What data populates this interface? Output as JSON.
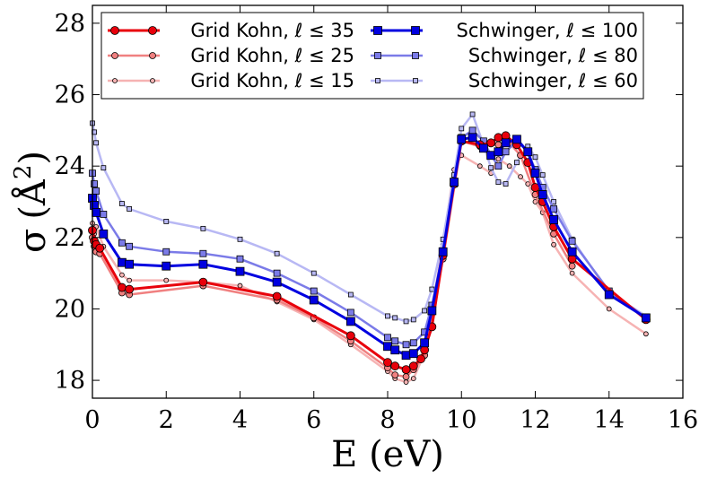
{
  "chart_data": {
    "type": "line",
    "title": "",
    "xlabel": "E (eV)",
    "ylabel": "σ (Å²)",
    "ylabel_parts": {
      "symbol": "σ",
      "unit": "Å",
      "exponent": "2"
    },
    "xlim": [
      0,
      16
    ],
    "ylim": [
      17.5,
      28.5
    ],
    "xticks": [
      0,
      2,
      4,
      6,
      8,
      10,
      12,
      14,
      16
    ],
    "xtick_labels": [
      "0",
      "2",
      "4",
      "6",
      "8",
      "10",
      "12",
      "14",
      "16"
    ],
    "yticks": [
      18,
      20,
      22,
      24,
      26,
      28
    ],
    "ytick_labels": [
      "18",
      "20",
      "22",
      "24",
      "26",
      "28"
    ],
    "grid": false,
    "legend_location": "top",
    "series": [
      {
        "name": "Grid Kohn, ℓ ≤ 35",
        "color": "#e8000b",
        "marker": "circle",
        "weight": "heavy",
        "x": [
          0,
          0.05,
          0.1,
          0.2,
          0.8,
          1,
          3,
          5,
          7,
          8,
          8.2,
          8.5,
          8.7,
          8.9,
          9,
          9.2,
          9.5,
          9.8,
          10,
          10.5,
          10.8,
          11,
          11.2,
          11.5,
          11.8,
          12,
          12.2,
          12.5,
          13,
          15
        ],
        "values": [
          22.2,
          21.9,
          21.8,
          21.7,
          20.6,
          20.55,
          20.75,
          20.35,
          19.25,
          18.5,
          18.4,
          18.3,
          18.4,
          18.6,
          18.85,
          19.5,
          21.5,
          23.5,
          24.7,
          24.6,
          24.65,
          24.8,
          24.85,
          24.6,
          24.1,
          23.4,
          23.0,
          22.3,
          21.4,
          19.7
        ]
      },
      {
        "name": "Grid Kohn, ℓ ≤ 25",
        "color": "#f08080",
        "marker": "circle",
        "weight": "medium",
        "x": [
          0,
          0.05,
          0.1,
          0.2,
          0.8,
          1,
          3,
          5,
          6,
          7,
          8,
          8.2,
          8.5,
          8.7,
          9,
          9.5,
          10,
          10.5,
          11,
          11.3,
          11.6,
          12,
          12.5,
          13
        ],
        "values": [
          22.0,
          21.75,
          21.6,
          21.55,
          20.45,
          20.4,
          20.65,
          20.25,
          19.75,
          19.1,
          18.35,
          18.15,
          18.1,
          18.3,
          18.7,
          21.4,
          24.7,
          24.55,
          24.6,
          24.65,
          24.3,
          23.2,
          22.1,
          21.2
        ]
      },
      {
        "name": "Grid Kohn, ℓ ≤ 15",
        "color": "#f6b3b3",
        "marker": "circle",
        "weight": "light",
        "x": [
          0,
          0.05,
          0.1,
          0.3,
          0.8,
          1,
          2,
          3,
          4,
          5,
          6,
          7,
          8,
          8.2,
          8.5,
          8.7,
          9,
          9.5,
          9.8,
          10,
          10.5,
          10.8,
          11,
          11.3,
          11.6,
          11.8,
          12,
          12.2,
          12.5,
          13,
          14,
          15
        ],
        "values": [
          22.4,
          22.1,
          22.3,
          21.75,
          20.95,
          20.8,
          20.8,
          20.75,
          20.65,
          20.2,
          19.7,
          19.0,
          18.25,
          18.05,
          17.95,
          18.05,
          18.75,
          21.8,
          23.9,
          24.3,
          24.0,
          23.8,
          24.2,
          24.0,
          23.7,
          23.5,
          23.0,
          22.7,
          21.8,
          21.0,
          20.0,
          19.3
        ]
      },
      {
        "name": "Schwinger, ℓ ≤ 100",
        "color": "#0000e0",
        "marker": "square",
        "weight": "heavy",
        "x": [
          0,
          0.05,
          0.1,
          0.3,
          0.8,
          1,
          2,
          3,
          4,
          5,
          6,
          7,
          8,
          8.2,
          8.5,
          8.7,
          9,
          9.2,
          9.5,
          9.8,
          10,
          10.3,
          10.6,
          10.8,
          11,
          11.2,
          11.5,
          11.8,
          12,
          12.2,
          12.5,
          13,
          14,
          15
        ],
        "values": [
          23.1,
          22.9,
          22.7,
          22.1,
          21.3,
          21.25,
          21.2,
          21.25,
          21.05,
          20.75,
          20.25,
          19.65,
          18.95,
          18.85,
          18.7,
          18.75,
          19.05,
          19.95,
          21.6,
          23.55,
          24.75,
          24.8,
          24.5,
          24.3,
          24.4,
          24.65,
          24.75,
          24.4,
          23.8,
          23.2,
          22.5,
          21.6,
          20.4,
          19.75
        ]
      },
      {
        "name": "Schwinger, ℓ ≤ 80",
        "color": "#7b7be8",
        "marker": "square",
        "weight": "medium",
        "x": [
          0,
          0.05,
          0.1,
          0.3,
          0.8,
          1,
          2,
          3,
          4,
          5,
          6,
          7,
          8,
          8.2,
          8.5,
          8.7,
          9,
          9.2,
          9.5,
          9.8,
          10,
          10.3,
          10.6,
          10.8,
          11,
          11.2,
          11.5,
          11.8,
          12,
          12.2,
          12.5,
          13,
          14,
          15
        ],
        "values": [
          23.8,
          23.5,
          23.3,
          22.65,
          21.85,
          21.75,
          21.6,
          21.55,
          21.4,
          21.0,
          20.5,
          19.9,
          19.2,
          19.1,
          19.0,
          19.05,
          19.35,
          20.1,
          21.6,
          23.5,
          24.8,
          25.0,
          24.7,
          24.3,
          24.0,
          24.4,
          24.7,
          24.4,
          23.9,
          23.4,
          22.8,
          21.9,
          20.5,
          19.75
        ]
      },
      {
        "name": "Schwinger, ℓ ≤ 60",
        "color": "#b8b8f4",
        "marker": "square",
        "weight": "light",
        "x": [
          0,
          0.05,
          0.1,
          0.3,
          0.8,
          1,
          2,
          3,
          4,
          5,
          6,
          7,
          8,
          8.2,
          8.5,
          8.7,
          9,
          9.2,
          9.5,
          9.8,
          10,
          10.3,
          10.6,
          10.8,
          11,
          11.2,
          11.5,
          11.8,
          12,
          12.2,
          12.5,
          13,
          14,
          15
        ],
        "values": [
          25.2,
          24.95,
          24.65,
          23.95,
          22.95,
          22.8,
          22.45,
          22.25,
          21.95,
          21.55,
          21.0,
          20.4,
          19.8,
          19.75,
          19.65,
          19.7,
          19.95,
          20.55,
          21.95,
          23.75,
          25.05,
          25.45,
          24.6,
          23.95,
          23.55,
          23.5,
          24.1,
          24.55,
          24.25,
          23.75,
          23.0,
          21.95,
          20.45,
          19.8
        ]
      }
    ]
  }
}
